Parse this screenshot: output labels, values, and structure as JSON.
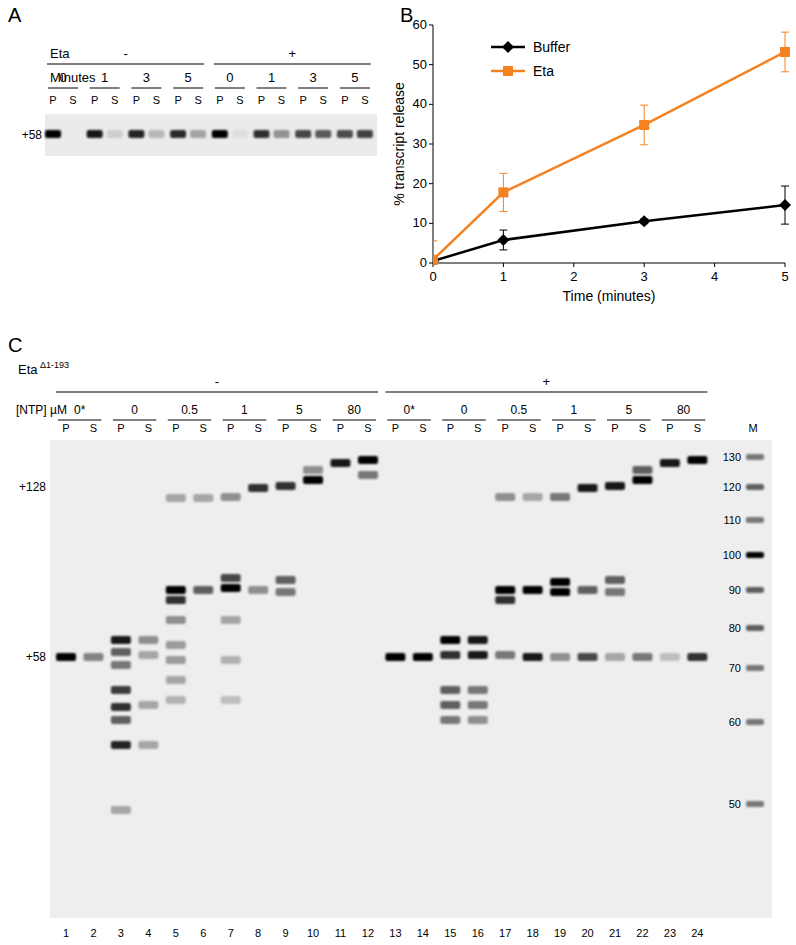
{
  "panel_labels": [
    "A",
    "B",
    "C"
  ],
  "gel_a": {
    "factor": "Eta",
    "conditions": [
      "-",
      "+"
    ],
    "row_label": "Minutes",
    "times": [
      0,
      1,
      3,
      5
    ],
    "lane_labels": [
      "P",
      "S"
    ],
    "band_label": "+58"
  },
  "chart_data": {
    "type": "line",
    "x": [
      0,
      1,
      3,
      5
    ],
    "series": [
      {
        "name": "Buffer",
        "color": "#000000",
        "marker": "diamond",
        "values": [
          0.5,
          5.8,
          10.5,
          14.6
        ],
        "errors": [
          0.5,
          2.5,
          0.6,
          4.8
        ]
      },
      {
        "name": "Eta",
        "color": "#f58220",
        "marker": "square",
        "values": [
          0.8,
          17.8,
          34.8,
          53.2
        ],
        "errors": [
          4.8,
          4.8,
          5,
          5
        ]
      }
    ],
    "xlim": [
      0,
      5
    ],
    "ylim": [
      0,
      60
    ],
    "xticks": [
      0,
      1,
      2,
      3,
      4,
      5
    ],
    "yticks": [
      0,
      10,
      20,
      30,
      40,
      50,
      60
    ],
    "x_label": "Time (minutes)",
    "y_label": "% transcript release",
    "legend": "top-left"
  },
  "gel_c": {
    "factor": "Eta",
    "factor_superscript": "Δ1-193",
    "conditions": [
      "-",
      "+"
    ],
    "row_label": "[NTP] µM",
    "ntp": [
      "0*",
      "0",
      "0.5",
      "1",
      "5",
      "80"
    ],
    "lane_labels": [
      "P",
      "S"
    ],
    "band_labels": [
      "+128",
      "+58"
    ],
    "lane_numbers": [
      1,
      2,
      3,
      4,
      5,
      6,
      7,
      8,
      9,
      10,
      11,
      12,
      13,
      14,
      15,
      16,
      17,
      18,
      19,
      20,
      21,
      22,
      23,
      24
    ],
    "marker_label": "M",
    "marker_sizes": [
      130,
      120,
      110,
      100,
      90,
      80,
      70,
      60,
      50
    ]
  }
}
